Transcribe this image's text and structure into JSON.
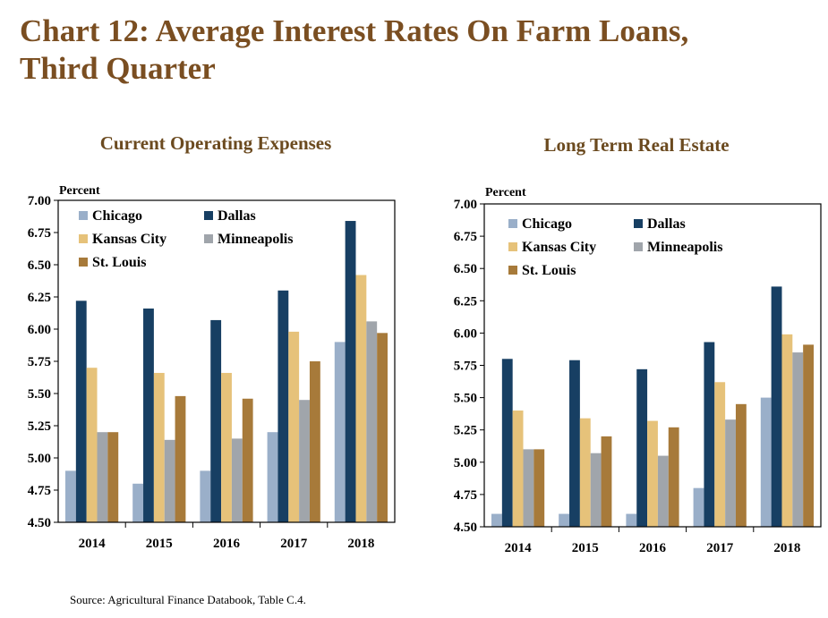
{
  "title_line1": "Chart 12: Average Interest Rates On Farm Loans,",
  "title_line2": "Third Quarter",
  "source": "Source: Agricultural Finance Databook, Table C.4.",
  "colors": {
    "Chicago": "#9aafc9",
    "Dallas": "#173f63",
    "Kansas City": "#e6c27a",
    "Minneapolis": "#a0a5ab",
    "St. Louis": "#a77a3a"
  },
  "chart_data": [
    {
      "type": "bar",
      "title": "Current Operating Expenses",
      "ylabel": "Percent",
      "ylim": [
        4.5,
        7.0
      ],
      "yticks": [
        "4.50",
        "4.75",
        "5.00",
        "5.25",
        "5.50",
        "5.75",
        "6.00",
        "6.25",
        "6.50",
        "6.75",
        "7.00"
      ],
      "categories": [
        "2014",
        "2015",
        "2016",
        "2017",
        "2018"
      ],
      "legend": "top-left",
      "series": [
        {
          "name": "Chicago",
          "values": [
            4.9,
            4.8,
            4.9,
            5.2,
            5.9
          ]
        },
        {
          "name": "Dallas",
          "values": [
            6.22,
            6.16,
            6.07,
            6.3,
            6.84
          ]
        },
        {
          "name": "Kansas City",
          "values": [
            5.7,
            5.66,
            5.66,
            5.98,
            6.42
          ]
        },
        {
          "name": "Minneapolis",
          "values": [
            5.2,
            5.14,
            5.15,
            5.45,
            6.06
          ]
        },
        {
          "name": "St. Louis",
          "values": [
            5.2,
            5.48,
            5.46,
            5.75,
            5.97
          ]
        }
      ]
    },
    {
      "type": "bar",
      "title": "Long Term Real Estate",
      "ylabel": "Percent",
      "ylim": [
        4.5,
        7.0
      ],
      "yticks": [
        "4.50",
        "4.75",
        "5.00",
        "5.25",
        "5.50",
        "5.75",
        "6.00",
        "6.25",
        "6.50",
        "6.75",
        "7.00"
      ],
      "categories": [
        "2014",
        "2015",
        "2016",
        "2017",
        "2018"
      ],
      "legend": "top-left",
      "series": [
        {
          "name": "Chicago",
          "values": [
            4.6,
            4.6,
            4.6,
            4.8,
            5.5
          ]
        },
        {
          "name": "Dallas",
          "values": [
            5.8,
            5.79,
            5.72,
            5.93,
            6.36
          ]
        },
        {
          "name": "Kansas City",
          "values": [
            5.4,
            5.34,
            5.32,
            5.62,
            5.99
          ]
        },
        {
          "name": "Minneapolis",
          "values": [
            5.1,
            5.07,
            5.05,
            5.33,
            5.85
          ]
        },
        {
          "name": "St. Louis",
          "values": [
            5.1,
            5.2,
            5.27,
            5.45,
            5.91
          ]
        }
      ]
    }
  ]
}
